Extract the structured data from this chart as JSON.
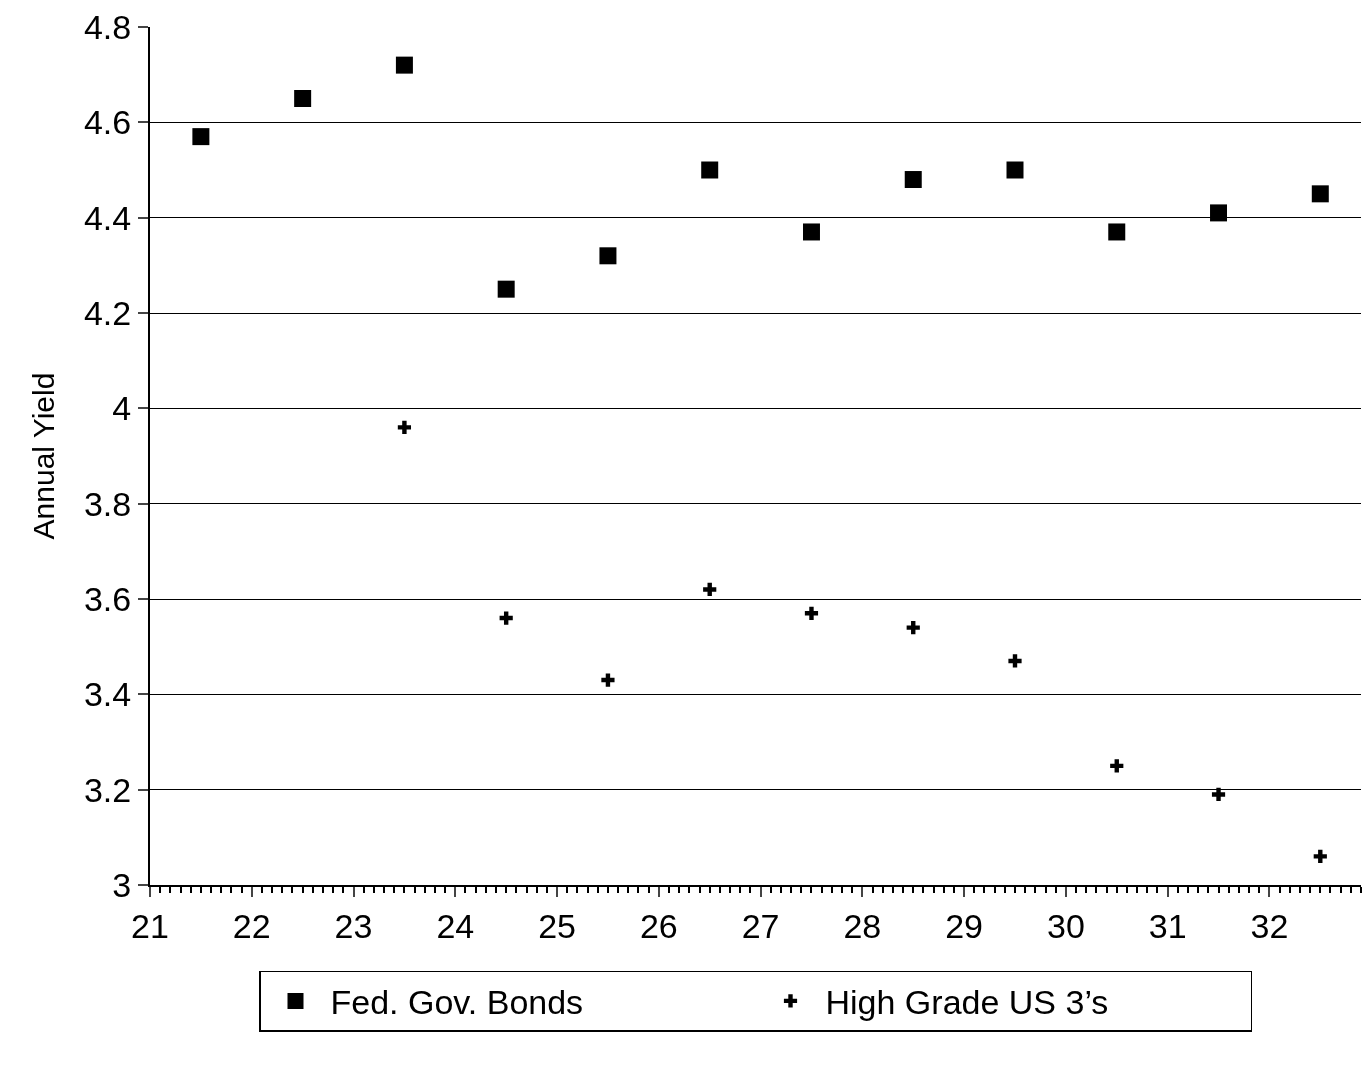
{
  "chart_data": {
    "type": "scatter",
    "ylabel": "Annual Yield",
    "xlim": [
      21,
      32.9
    ],
    "xticks": [
      21,
      22,
      23,
      24,
      25,
      26,
      27,
      28,
      29,
      30,
      31,
      32
    ],
    "ylim": [
      3,
      4.8
    ],
    "yticks": [
      3,
      3.2,
      3.4,
      3.6,
      3.8,
      4,
      4.2,
      4.4,
      4.6,
      4.8
    ],
    "grid": "y",
    "legend": "bottom",
    "series": [
      {
        "name": "Fed. Gov. Bonds",
        "color": "#000000",
        "marker": "square",
        "x": [
          21.5,
          22.5,
          23.5,
          24.5,
          25.5,
          26.5,
          27.5,
          28.5,
          29.5,
          30.5,
          31.5,
          32.5
        ],
        "values": [
          4.57,
          4.65,
          4.72,
          4.25,
          4.32,
          4.5,
          4.37,
          4.48,
          4.5,
          4.37,
          4.41,
          4.45
        ]
      },
      {
        "name": "High Grade US 3’s",
        "color": "#000000",
        "marker": "cross",
        "x": [
          23.5,
          24.5,
          25.5,
          26.5,
          27.5,
          28.5,
          29.5,
          30.5,
          31.5,
          32.5
        ],
        "values": [
          3.96,
          3.56,
          3.43,
          3.62,
          3.57,
          3.54,
          3.47,
          3.25,
          3.19,
          3.06
        ]
      }
    ]
  }
}
